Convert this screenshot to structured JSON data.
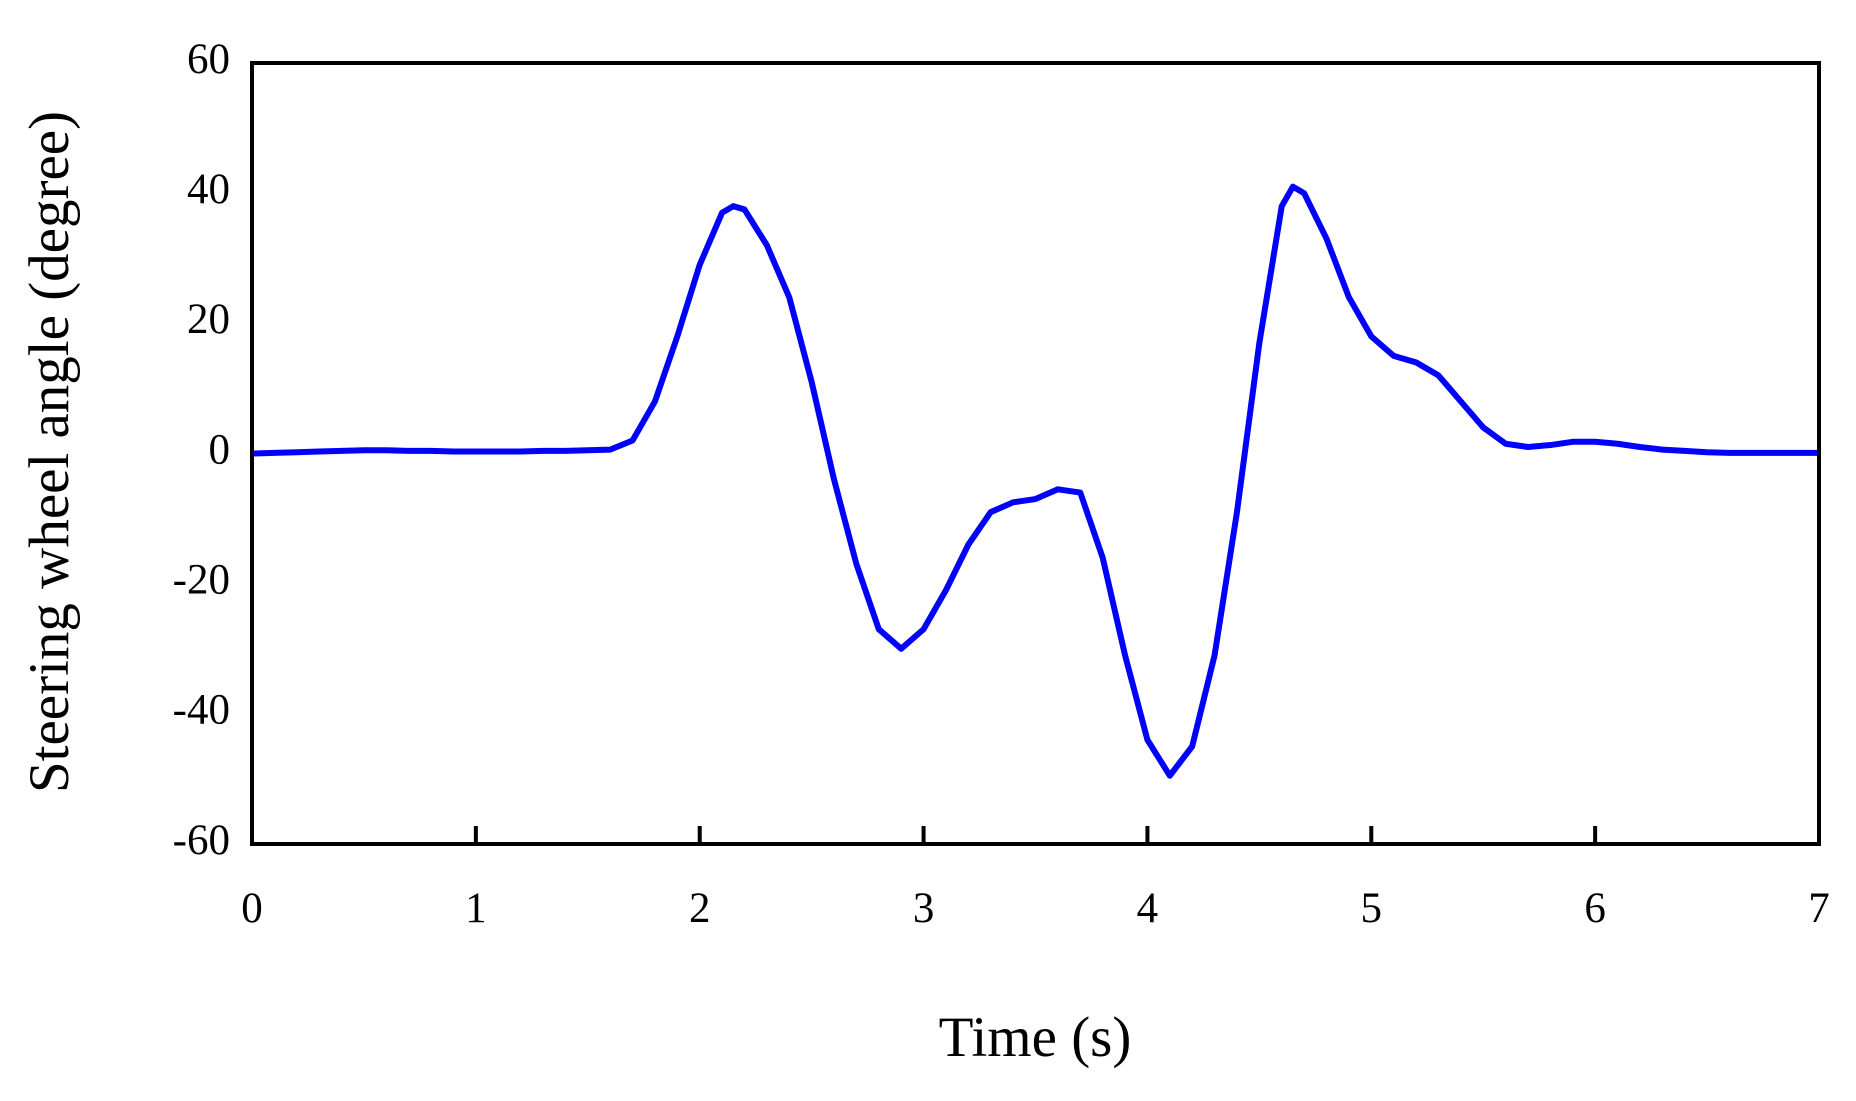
{
  "chart_data": {
    "type": "line",
    "x_label": "Time (s)",
    "y_label": "Steering wheel angle (degree)",
    "x": [
      0,
      0.1,
      0.2,
      0.3,
      0.4,
      0.5,
      0.6,
      0.7,
      0.8,
      0.9,
      1.0,
      1.1,
      1.2,
      1.3,
      1.4,
      1.5,
      1.6,
      1.7,
      1.8,
      1.9,
      2.0,
      2.1,
      2.15,
      2.2,
      2.3,
      2.4,
      2.5,
      2.6,
      2.7,
      2.8,
      2.9,
      3.0,
      3.1,
      3.2,
      3.3,
      3.4,
      3.5,
      3.6,
      3.7,
      3.8,
      3.9,
      4.0,
      4.1,
      4.2,
      4.3,
      4.4,
      4.5,
      4.6,
      4.65,
      4.7,
      4.8,
      4.9,
      5.0,
      5.1,
      5.2,
      5.3,
      5.4,
      5.5,
      5.6,
      5.7,
      5.8,
      5.9,
      6.0,
      6.1,
      6.2,
      6.3,
      6.4,
      6.5,
      6.6,
      6.7,
      6.8,
      6.9,
      7.0
    ],
    "series": [
      {
        "color": "#0000ff",
        "values": [
          0,
          0.1,
          0.2,
          0.3,
          0.4,
          0.5,
          0.5,
          0.4,
          0.4,
          0.3,
          0.3,
          0.3,
          0.3,
          0.4,
          0.4,
          0.5,
          0.6,
          2,
          8,
          18,
          29,
          37,
          38,
          37.5,
          32,
          24,
          11,
          -4,
          -17,
          -27,
          -30,
          -27,
          -21,
          -14,
          -9,
          -7.5,
          -7,
          -5.5,
          -6,
          -16,
          -31,
          -44,
          -49.5,
          -45,
          -31,
          -9,
          17,
          38,
          41,
          40,
          33,
          24,
          18,
          15,
          14,
          12,
          8,
          4,
          1.5,
          1,
          1.3,
          1.8,
          1.8,
          1.5,
          1,
          0.6,
          0.4,
          0.2,
          0.1,
          0.1,
          0.1,
          0.1,
          0.1
        ]
      }
    ],
    "xlim": [
      0,
      7
    ],
    "xticks": [
      0,
      1,
      2,
      3,
      4,
      5,
      6,
      7
    ],
    "ylim": [
      -60,
      60
    ],
    "yticks": [
      -60,
      -40,
      -20,
      0,
      20,
      40,
      60
    ]
  }
}
